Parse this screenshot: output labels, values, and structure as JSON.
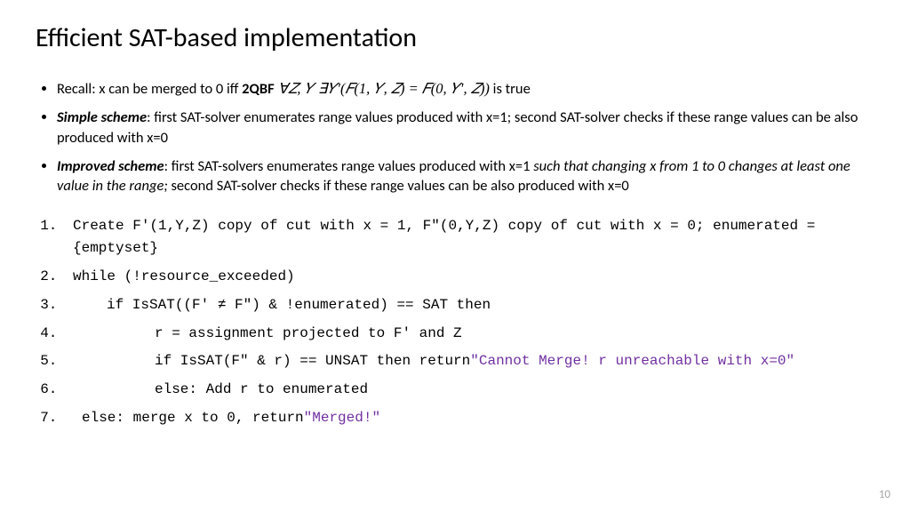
{
  "title": "Efficient SAT-based implementation",
  "bullets": {
    "b1_prefix": "Recall: x can be merged to 0 iff ",
    "b1_bold": "2QBF",
    "b1_math": " ∀𝑍, 𝑌 ∃𝑌′(𝐹(1, 𝑌, 𝑍) = 𝐹(0, 𝑌′, 𝑍))",
    "b1_suffix": " is true",
    "b2_head": "Simple scheme",
    "b2_body": ": first SAT-solver enumerates range values produced with x=1; second SAT-solver checks if these range values can be also produced with x=0",
    "b3_head": "Improved scheme",
    "b3_body_a": ": first SAT-solvers enumerates range values produced with x=1 ",
    "b3_body_i": "such that changing x from 1 to 0 changes at least one value in the range;",
    "b3_body_b": " second SAT-solver checks if these range values can be also produced with x=0"
  },
  "algo": {
    "s1": "Create F'(1,Y,Z) copy of cut  with x = 1, F\"(0,Y,Z)  copy of cut with x = 0; enumerated = {emptyset}",
    "s2": "while (!resource_exceeded)",
    "s3": "if IsSAT((F' ≠ F\") & !enumerated) == SAT then",
    "s4": "r = assignment projected to F' and Z",
    "s5a": "if IsSAT(F\" & r) == UNSAT then return ",
    "s5q": "\"Cannot Merge! r unreachable with x=0\"",
    "s6": "else: Add r to enumerated",
    "s7a": "else: merge x to 0, return ",
    "s7q": "\"Merged!\""
  },
  "pagenum": "10"
}
